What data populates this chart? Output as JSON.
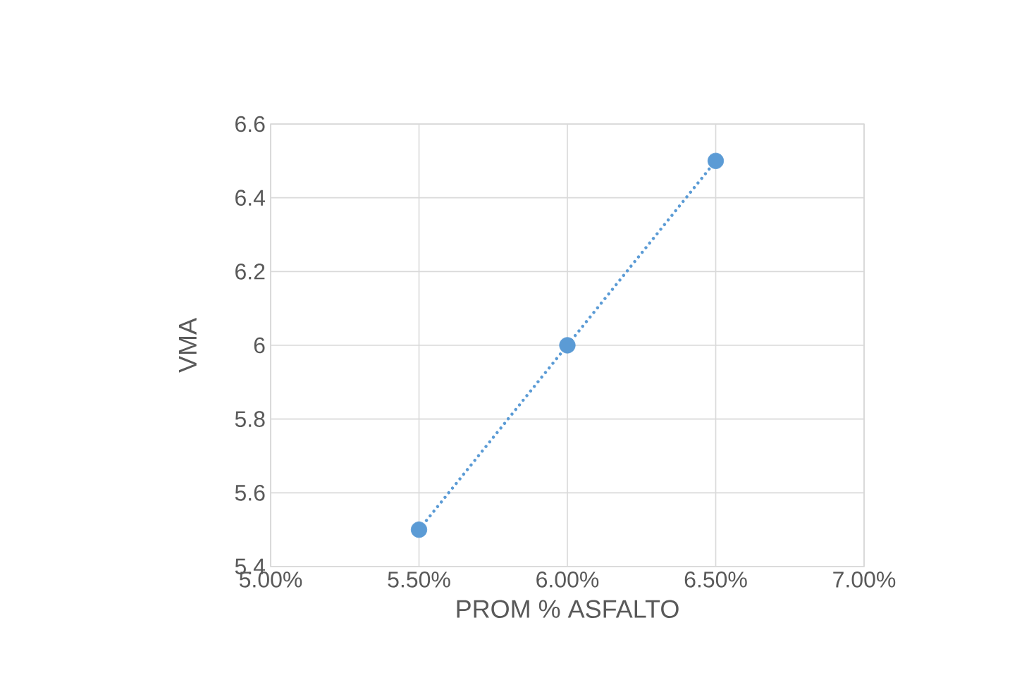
{
  "chart_data": {
    "type": "scatter",
    "xlabel": "PROM % ASFALTO",
    "ylabel": "VMA",
    "xlim": [
      5.0,
      7.0
    ],
    "xticks": [
      {
        "value": 5.0,
        "label": "5.00%"
      },
      {
        "value": 5.5,
        "label": "5.50%"
      },
      {
        "value": 6.0,
        "label": "6.00%"
      },
      {
        "value": 6.5,
        "label": "6.50%"
      },
      {
        "value": 7.0,
        "label": "7.00%"
      }
    ],
    "ylim": [
      5.4,
      6.6
    ],
    "yticks": [
      5.4,
      5.6,
      5.8,
      6,
      6.2,
      6.4,
      6.6
    ],
    "grid": true,
    "series": [
      {
        "type": "line",
        "color": "#5b9bd5",
        "line_style": "dotted",
        "x": [
          5.5,
          6.5
        ],
        "values": [
          5.5,
          6.5
        ]
      },
      {
        "color": "#5b9bd5",
        "marker": "circle",
        "x": [
          5.5,
          6.0,
          6.5
        ],
        "values": [
          5.5,
          6,
          6.5
        ]
      }
    ]
  }
}
